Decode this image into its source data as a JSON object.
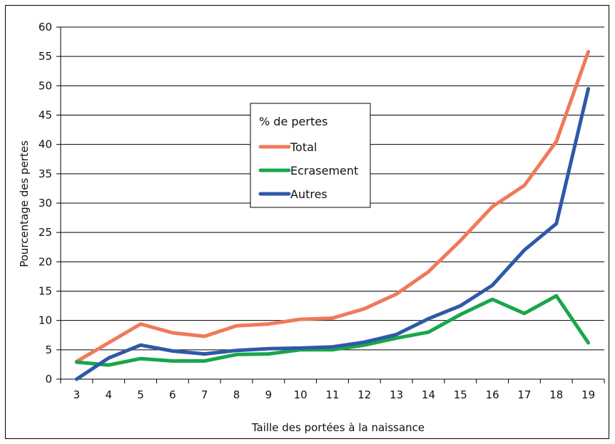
{
  "chart_data": {
    "type": "line",
    "xlabel": "Taille des portées à la naissance",
    "ylabel": "Pourcentage des pertes",
    "x": [
      3,
      4,
      5,
      6,
      7,
      8,
      9,
      10,
      11,
      12,
      13,
      14,
      15,
      16,
      17,
      18,
      19
    ],
    "ylim": [
      0,
      60
    ],
    "yticks": [
      0,
      5,
      10,
      15,
      20,
      25,
      30,
      35,
      40,
      45,
      50,
      55,
      60
    ],
    "grid": "horizontal",
    "legend": {
      "title": "% de pertes",
      "position": "center-left"
    },
    "series": [
      {
        "name": "Total",
        "color": "#f0795b",
        "values": [
          3,
          6.2,
          9.4,
          7.9,
          7.3,
          9.1,
          9.4,
          10.2,
          10.4,
          12,
          14.5,
          18.3,
          23.6,
          29.4,
          33,
          40.5,
          55.8
        ]
      },
      {
        "name": "Ecrasement",
        "color": "#19a64a",
        "values": [
          2.9,
          2.4,
          3.5,
          3.1,
          3.1,
          4.2,
          4.3,
          5,
          5,
          5.8,
          7,
          8,
          11,
          13.6,
          11.2,
          14.2,
          6.2
        ]
      },
      {
        "name": "Autres",
        "color": "#2f59a8",
        "values": [
          0,
          3.6,
          5.8,
          4.8,
          4.3,
          4.9,
          5.2,
          5.3,
          5.5,
          6.3,
          7.6,
          10.3,
          12.5,
          16,
          22,
          26.5,
          49.5
        ]
      }
    ]
  }
}
